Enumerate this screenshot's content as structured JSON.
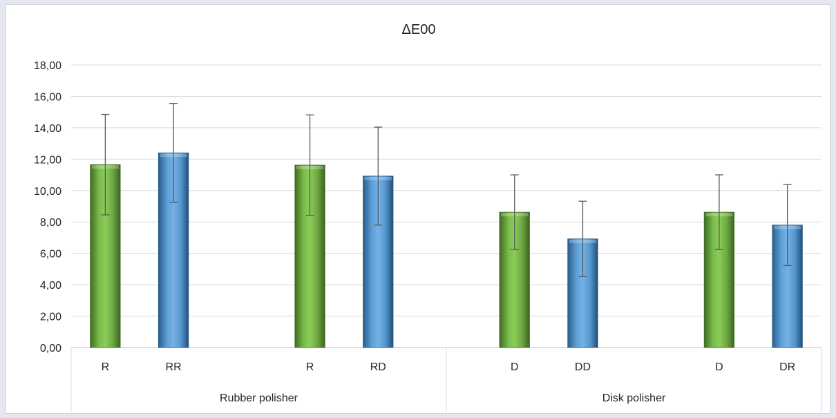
{
  "chart_data": {
    "type": "bar",
    "title": "ΔE00",
    "xlabel": "",
    "ylabel": "",
    "ylim": [
      0,
      18
    ],
    "y_ticks": [
      "0,00",
      "2,00",
      "4,00",
      "6,00",
      "8,00",
      "10,00",
      "12,00",
      "14,00",
      "16,00",
      "18,00"
    ],
    "grid": true,
    "legend": "none",
    "groups": [
      {
        "label": "Rubber polisher",
        "span": 4
      },
      {
        "label": "Disk polisher",
        "span": 4
      }
    ],
    "bars": [
      {
        "label": "R",
        "value": 11.65,
        "error": 3.2,
        "color": "#70ad47"
      },
      {
        "label": "RR",
        "value": 12.4,
        "error": 3.15,
        "color": "#5b9bd5"
      },
      {
        "label": "",
        "value": null
      },
      {
        "label": "R",
        "value": 11.62,
        "error": 3.2,
        "color": "#70ad47"
      },
      {
        "label": "RD",
        "value": 10.92,
        "error": 3.12,
        "color": "#5b9bd5"
      },
      {
        "label": "",
        "value": null
      },
      {
        "label": "D",
        "value": 8.62,
        "error": 2.38,
        "color": "#70ad47"
      },
      {
        "label": "DD",
        "value": 6.92,
        "error": 2.4,
        "color": "#5b9bd5"
      },
      {
        "label": "",
        "value": null
      },
      {
        "label": "D",
        "value": 8.62,
        "error": 2.38,
        "color": "#70ad47"
      },
      {
        "label": "DR",
        "value": 7.8,
        "error": 2.58,
        "color": "#5b9bd5"
      }
    ]
  }
}
